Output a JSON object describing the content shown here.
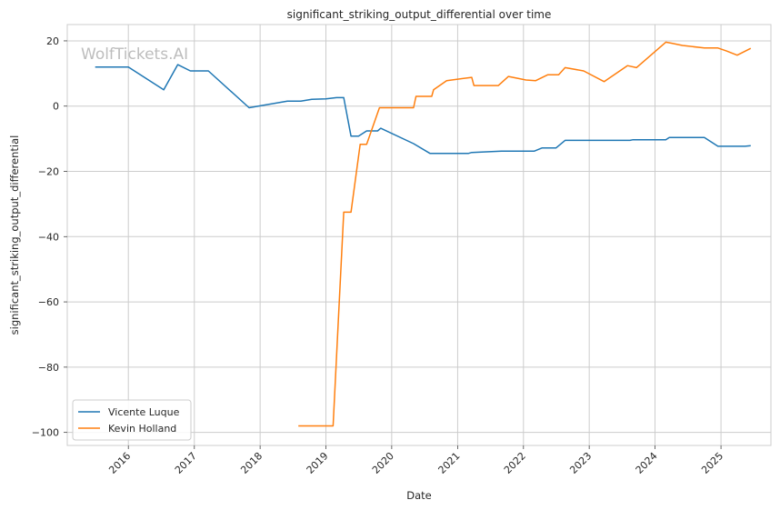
{
  "watermark": "WolfTickets.AI",
  "chart_data": {
    "type": "line",
    "title": "significant_striking_output_differential over time",
    "xlabel": "Date",
    "ylabel": "significant_striking_output_differential",
    "xlim": [
      "2015-01-27",
      "2025-10-05"
    ],
    "ylim": [
      -104,
      25
    ],
    "x_ticks": [
      "2016-01-01",
      "2017-01-01",
      "2018-01-01",
      "2019-01-01",
      "2020-01-01",
      "2021-01-01",
      "2022-01-01",
      "2023-01-01",
      "2024-01-01",
      "2025-01-01"
    ],
    "x_tick_labels": [
      "2016",
      "2017",
      "2018",
      "2019",
      "2020",
      "2021",
      "2022",
      "2023",
      "2024",
      "2025"
    ],
    "y_ticks": [
      20,
      0,
      -20,
      -40,
      -60,
      -80,
      -100
    ],
    "y_tick_labels": [
      "20",
      "0",
      "−20",
      "−40",
      "−60",
      "−80",
      "−100"
    ],
    "grid": true,
    "legend_position": "lower-left",
    "series": [
      {
        "name": "Vicente Luque",
        "color": "#1f77b4",
        "points": [
          [
            "2015-07-01",
            12
          ],
          [
            "2016-01-01",
            12
          ],
          [
            "2016-07-15",
            5
          ],
          [
            "2016-10-01",
            12.7
          ],
          [
            "2016-12-10",
            10.8
          ],
          [
            "2017-03-20",
            10.8
          ],
          [
            "2017-11-01",
            -0.5
          ],
          [
            "2018-06-01",
            1.5
          ],
          [
            "2018-08-15",
            1.5
          ],
          [
            "2018-10-15",
            2.1
          ],
          [
            "2019-01-01",
            2.2
          ],
          [
            "2019-03-01",
            2.6
          ],
          [
            "2019-04-10",
            2.6
          ],
          [
            "2019-05-20",
            -9.2
          ],
          [
            "2019-07-01",
            -9.2
          ],
          [
            "2019-08-15",
            -7.6
          ],
          [
            "2019-10-15",
            -7.6
          ],
          [
            "2019-11-01",
            -6.8
          ],
          [
            "2020-05-01",
            -11.5
          ],
          [
            "2020-08-01",
            -14.5
          ],
          [
            "2021-03-01",
            -14.5
          ],
          [
            "2021-03-20",
            -14.2
          ],
          [
            "2021-09-01",
            -13.8
          ],
          [
            "2022-03-01",
            -13.8
          ],
          [
            "2022-04-15",
            -12.8
          ],
          [
            "2022-07-01",
            -12.8
          ],
          [
            "2022-08-20",
            -10.5
          ],
          [
            "2023-08-15",
            -10.5
          ],
          [
            "2023-09-01",
            -10.3
          ],
          [
            "2024-03-01",
            -10.3
          ],
          [
            "2024-03-20",
            -9.6
          ],
          [
            "2024-10-01",
            -9.6
          ],
          [
            "2024-12-15",
            -12.3
          ],
          [
            "2025-05-15",
            -12.3
          ],
          [
            "2025-06-15",
            -12.1
          ]
        ]
      },
      {
        "name": "Kevin Holland",
        "color": "#ff7f0e",
        "points": [
          [
            "2018-08-01",
            -98
          ],
          [
            "2019-02-10",
            -98
          ],
          [
            "2019-04-10",
            -32.5
          ],
          [
            "2019-05-20",
            -32.5
          ],
          [
            "2019-07-10",
            -11.7
          ],
          [
            "2019-08-15",
            -11.7
          ],
          [
            "2019-10-25",
            -0.5
          ],
          [
            "2020-05-01",
            -0.5
          ],
          [
            "2020-05-15",
            3
          ],
          [
            "2020-08-10",
            3
          ],
          [
            "2020-08-20",
            5
          ],
          [
            "2020-11-01",
            7.8
          ],
          [
            "2021-03-20",
            8.8
          ],
          [
            "2021-04-01",
            6.3
          ],
          [
            "2021-08-15",
            6.3
          ],
          [
            "2021-10-10",
            9.1
          ],
          [
            "2022-01-15",
            8
          ],
          [
            "2022-03-10",
            7.8
          ],
          [
            "2022-05-15",
            9.6
          ],
          [
            "2022-07-15",
            9.6
          ],
          [
            "2022-08-20",
            11.8
          ],
          [
            "2022-12-01",
            10.8
          ],
          [
            "2023-03-25",
            7.5
          ],
          [
            "2023-08-01",
            12.4
          ],
          [
            "2023-09-20",
            11.8
          ],
          [
            "2024-03-01",
            19.6
          ],
          [
            "2024-04-01",
            19.3
          ],
          [
            "2024-06-01",
            18.6
          ],
          [
            "2024-10-01",
            17.8
          ],
          [
            "2024-12-15",
            17.8
          ],
          [
            "2025-02-01",
            16.9
          ],
          [
            "2025-04-01",
            15.6
          ],
          [
            "2025-06-15",
            17.7
          ]
        ]
      }
    ]
  }
}
